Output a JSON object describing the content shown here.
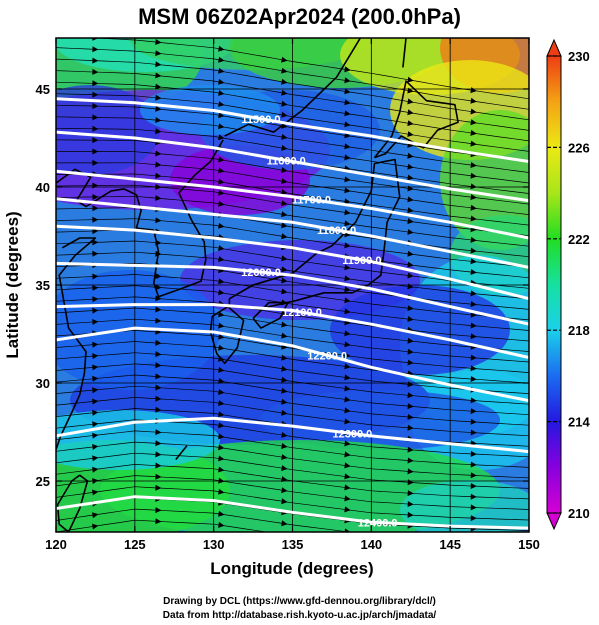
{
  "map": {
    "title": "MSM 06Z02Apr2024 (200.0hPa)",
    "xlabel": "Longitude (degrees)",
    "ylabel": "Latitude  (degrees)",
    "x_ticks": [
      "120",
      "125",
      "130",
      "135",
      "140",
      "145",
      "150"
    ],
    "y_ticks": [
      "25",
      "30",
      "35",
      "40",
      "45"
    ],
    "lon_range": [
      120,
      150
    ],
    "lat_range": [
      22.4,
      47.6
    ],
    "field": "temperature",
    "colorbar": {
      "range": [
        210,
        230
      ],
      "ticks": [
        "230",
        "226",
        "222",
        "218",
        "214",
        "210"
      ],
      "colors": [
        "#d400d4",
        "#8800dd",
        "#2418e0",
        "#1b6cf0",
        "#1bd0ea",
        "#16e0a0",
        "#22dd22",
        "#a8e619",
        "#ece814",
        "#f4a314",
        "#ee3d14"
      ]
    },
    "contours": [
      {
        "label": "11500.0",
        "points": [
          [
            120,
            44.5
          ],
          [
            125,
            44.3
          ],
          [
            130,
            43.9
          ],
          [
            135,
            43.2
          ],
          [
            140,
            42.6
          ],
          [
            145,
            41.9
          ],
          [
            150,
            41.3
          ]
        ]
      },
      {
        "label": "11600.0",
        "points": [
          [
            120,
            42.8
          ],
          [
            125,
            42.5
          ],
          [
            130,
            42.0
          ],
          [
            135,
            41.3
          ],
          [
            140,
            40.6
          ],
          [
            145,
            39.9
          ],
          [
            150,
            39.3
          ]
        ]
      },
      {
        "label": "11700.0",
        "points": [
          [
            120,
            40.8
          ],
          [
            125,
            40.4
          ],
          [
            130,
            40.0
          ],
          [
            135,
            39.5
          ],
          [
            140,
            38.9
          ],
          [
            145,
            38.2
          ],
          [
            150,
            37.4
          ]
        ]
      },
      {
        "label": "11800.0",
        "points": [
          [
            120,
            39.4
          ],
          [
            125,
            39.0
          ],
          [
            130,
            38.6
          ],
          [
            135,
            38.2
          ],
          [
            140,
            37.5
          ],
          [
            145,
            36.7
          ],
          [
            150,
            35.9
          ]
        ]
      },
      {
        "label": "11900.0",
        "points": [
          [
            120,
            38.0
          ],
          [
            125,
            37.8
          ],
          [
            130,
            37.4
          ],
          [
            135,
            36.9
          ],
          [
            140,
            36.2
          ],
          [
            145,
            35.3
          ],
          [
            150,
            34.3
          ]
        ]
      },
      {
        "label": "12000.0",
        "points": [
          [
            120,
            36.1
          ],
          [
            125,
            36.0
          ],
          [
            130,
            35.9
          ],
          [
            135,
            35.5
          ],
          [
            140,
            34.8
          ],
          [
            145,
            33.9
          ],
          [
            150,
            33.0
          ]
        ]
      },
      {
        "label": "12100.0",
        "points": [
          [
            120,
            33.9
          ],
          [
            125,
            34.0
          ],
          [
            130,
            34.0
          ],
          [
            135,
            33.7
          ],
          [
            140,
            33.0
          ],
          [
            145,
            32.2
          ],
          [
            150,
            31.3
          ]
        ]
      },
      {
        "label": "12200.0",
        "points": [
          [
            120,
            32.2
          ],
          [
            125,
            32.8
          ],
          [
            130,
            32.6
          ],
          [
            135,
            31.9
          ],
          [
            140,
            30.8
          ],
          [
            145,
            29.9
          ],
          [
            150,
            29.1
          ]
        ]
      },
      {
        "label": "12300.0",
        "points": [
          [
            120,
            27.3
          ],
          [
            125,
            28.0
          ],
          [
            130,
            28.2
          ],
          [
            135,
            27.8
          ],
          [
            140,
            27.3
          ],
          [
            145,
            26.9
          ],
          [
            150,
            26.5
          ]
        ]
      },
      {
        "label": "12400.0",
        "points": [
          [
            120,
            23.6
          ],
          [
            125,
            24.2
          ],
          [
            130,
            24.0
          ],
          [
            135,
            23.4
          ],
          [
            140,
            22.9
          ],
          [
            145,
            22.7
          ],
          [
            150,
            22.6
          ]
        ]
      }
    ],
    "coastlines": [
      {
        "name": "japan-honshu",
        "points": [
          [
            131,
            34.3
          ],
          [
            132.5,
            35.0
          ],
          [
            135,
            35.6
          ],
          [
            136.5,
            36.6
          ],
          [
            137.5,
            37.0
          ],
          [
            139,
            38.2
          ],
          [
            140,
            39.8
          ],
          [
            140.2,
            41.2
          ],
          [
            141.5,
            41.4
          ],
          [
            141.8,
            39.5
          ],
          [
            141,
            38.2
          ],
          [
            140.8,
            36.7
          ],
          [
            140.6,
            35.5
          ],
          [
            139.8,
            35.0
          ],
          [
            138.8,
            34.6
          ],
          [
            137,
            34.6
          ],
          [
            135.2,
            34.2
          ],
          [
            133,
            33.8
          ],
          [
            131,
            33.9
          ],
          [
            131,
            34.3
          ]
        ]
      },
      {
        "name": "japan-kyushu",
        "points": [
          [
            129.9,
            33.4
          ],
          [
            130.9,
            33.9
          ],
          [
            131.9,
            33.2
          ],
          [
            131.5,
            31.8
          ],
          [
            130.7,
            31.0
          ],
          [
            130.2,
            31.5
          ],
          [
            129.8,
            32.6
          ],
          [
            129.9,
            33.4
          ]
        ]
      },
      {
        "name": "japan-shikoku",
        "points": [
          [
            132.5,
            33.3
          ],
          [
            133.5,
            34.1
          ],
          [
            134.7,
            34.1
          ],
          [
            134.2,
            33.3
          ],
          [
            133.0,
            32.8
          ],
          [
            132.5,
            33.3
          ]
        ]
      },
      {
        "name": "japan-hokkaido",
        "points": [
          [
            140.2,
            41.5
          ],
          [
            141.3,
            42.6
          ],
          [
            141.8,
            43.8
          ],
          [
            142.2,
            45.4
          ],
          [
            143.5,
            44.4
          ],
          [
            145.3,
            44.2
          ],
          [
            145.5,
            43.3
          ],
          [
            144.2,
            42.9
          ],
          [
            143.3,
            42.0
          ],
          [
            141.9,
            42.6
          ],
          [
            140.9,
            41.7
          ],
          [
            140.2,
            41.5
          ]
        ]
      },
      {
        "name": "sakhalin",
        "points": [
          [
            142.0,
            46.1
          ],
          [
            142.2,
            47.6
          ]
        ]
      },
      {
        "name": "korea",
        "points": [
          [
            126.2,
            37.8
          ],
          [
            126.5,
            36.7
          ],
          [
            126.2,
            35.1
          ],
          [
            126.5,
            34.4
          ],
          [
            127.9,
            34.8
          ],
          [
            129.2,
            35.2
          ],
          [
            129.5,
            36.3
          ],
          [
            129.4,
            37.2
          ],
          [
            128.6,
            38.3
          ],
          [
            127.8,
            39.7
          ],
          [
            128.8,
            40.6
          ],
          [
            129.8,
            41.3
          ],
          [
            130.6,
            42.4
          ]
        ]
      },
      {
        "name": "china-coast",
        "points": [
          [
            120.4,
            36.9
          ],
          [
            121.5,
            37.4
          ],
          [
            122.5,
            37.4
          ],
          [
            121.2,
            36.5
          ],
          [
            120.2,
            35.5
          ],
          [
            120.8,
            32.8
          ],
          [
            121.9,
            31.6
          ],
          [
            121.8,
            30.5
          ],
          [
            121.5,
            29.4
          ],
          [
            121.0,
            28.5
          ],
          [
            120.3,
            27.3
          ],
          [
            120,
            26.6
          ]
        ]
      },
      {
        "name": "liaodong",
        "points": [
          [
            120,
            40.2
          ],
          [
            121.2,
            40.9
          ],
          [
            122.2,
            40.5
          ],
          [
            121.3,
            39.3
          ],
          [
            121.9,
            39.0
          ],
          [
            123.5,
            39.8
          ],
          [
            124.3,
            39.9
          ],
          [
            125.1,
            39.6
          ],
          [
            125.4,
            38.8
          ],
          [
            125.1,
            37.9
          ],
          [
            126.2,
            37.8
          ]
        ]
      },
      {
        "name": "taiwan",
        "points": [
          [
            121.5,
            25.3
          ],
          [
            122.0,
            25.0
          ],
          [
            121.5,
            23.6
          ],
          [
            120.8,
            22.4
          ],
          [
            120.2,
            22.8
          ],
          [
            120.1,
            23.8
          ],
          [
            121.0,
            25.0
          ],
          [
            121.5,
            25.3
          ]
        ]
      },
      {
        "name": "okinawa",
        "points": [
          [
            127.6,
            26.1
          ],
          [
            128.3,
            26.8
          ]
        ]
      },
      {
        "name": "primorye",
        "points": [
          [
            130.7,
            42.6
          ],
          [
            132.2,
            43.2
          ],
          [
            133.8,
            42.8
          ],
          [
            135.6,
            43.9
          ],
          [
            137.8,
            45.6
          ],
          [
            139.0,
            47.2
          ],
          [
            139.3,
            47.6
          ]
        ]
      }
    ]
  },
  "credits": {
    "line1": "Drawing by DCL (https://www.gfd-dennou.org/library/dcl/)",
    "line2": "Data from http://database.rish.kyoto-u.ac.jp/arch/jmadata/"
  }
}
